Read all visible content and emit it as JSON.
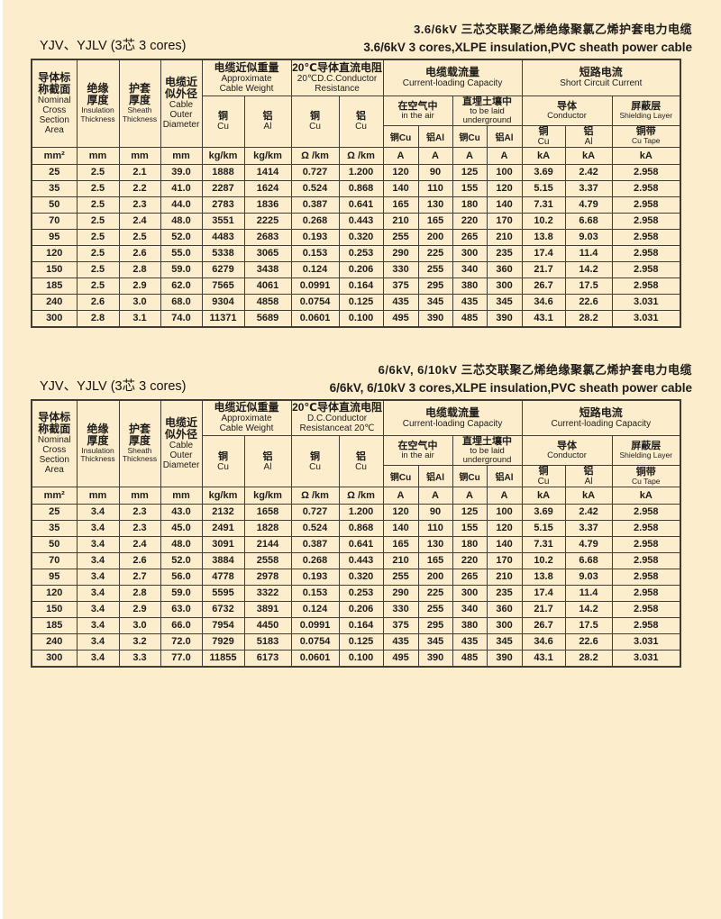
{
  "page": {
    "bg": "#fceecd",
    "border_color": "#403c36"
  },
  "tables": [
    {
      "title_zh": "3.6/6kV 三芯交联聚乙烯绝缘聚氯乙烯护套电力电缆",
      "title_en": "3.6/6kV 3 cores,XLPE insulation,PVC sheath power cable",
      "model": "YJV、YJLV (3芯 3 cores)",
      "header": {
        "nominal_zh": "导体标\n称截面",
        "nominal_en": "Nominal\nCross\nSection\nArea",
        "insulation_zh": "绝缘\n厚度",
        "insulation_en": "Insulation\nThickness",
        "sheath_zh": "护套\n厚度",
        "sheath_en": "Sheath\nThickness",
        "diameter_zh": "电缆近\n似外径",
        "diameter_en": "Cable\nOuter\nDiameter",
        "weight_zh": "电缆近似重量",
        "weight_en": "Approximate\nCable Weight",
        "res_zh": "20℃导体直流电阻",
        "res_en": "20℃D.C.Conductor\nResistance",
        "cap_zh": "电缆载流量",
        "cap_en": "Current-loading Capacity",
        "air_zh": "在空气中",
        "air_en": "in the air",
        "und_zh": "直埋土壤中",
        "und_en": "to be laid\nunderground",
        "sc_zh": "短路电流",
        "sc_en": "Short Circuit Current",
        "cond_zh": "导体",
        "cond_en": "Conductor",
        "shield_zh": "屏蔽层",
        "shield_en": "Shielding Layer",
        "cu_zh": "铜",
        "cu_en": "Cu",
        "al_zh": "铝",
        "al_en": "Al",
        "res_al_en": "Cu",
        "cap_air_cu": "铜Cu",
        "cap_air_al": "铝Al",
        "cap_und_cu": "铜Cu",
        "cap_und_al": "铝Al",
        "tape_zh": "铜带",
        "tape_en": "Cu Tape"
      },
      "units": [
        [
          "mm²",
          "mm",
          "mm",
          "mm",
          "kg/km",
          "kg/km",
          "Ω /km",
          "Ω /km",
          "A",
          "A",
          "A",
          "A",
          "kA",
          "kA",
          "kA"
        ]
      ],
      "rows": [
        [
          "25",
          "2.5",
          "2.1",
          "39.0",
          "1888",
          "1414",
          "0.727",
          "1.200",
          "120",
          "90",
          "125",
          "100",
          "3.69",
          "2.42",
          "2.958"
        ],
        [
          "35",
          "2.5",
          "2.2",
          "41.0",
          "2287",
          "1624",
          "0.524",
          "0.868",
          "140",
          "110",
          "155",
          "120",
          "5.15",
          "3.37",
          "2.958"
        ],
        [
          "50",
          "2.5",
          "2.3",
          "44.0",
          "2783",
          "1836",
          "0.387",
          "0.641",
          "165",
          "130",
          "180",
          "140",
          "7.31",
          "4.79",
          "2.958"
        ],
        [
          "70",
          "2.5",
          "2.4",
          "48.0",
          "3551",
          "2225",
          "0.268",
          "0.443",
          "210",
          "165",
          "220",
          "170",
          "10.2",
          "6.68",
          "2.958"
        ],
        [
          "95",
          "2.5",
          "2.5",
          "52.0",
          "4483",
          "2683",
          "0.193",
          "0.320",
          "255",
          "200",
          "265",
          "210",
          "13.8",
          "9.03",
          "2.958"
        ],
        [
          "120",
          "2.5",
          "2.6",
          "55.0",
          "5338",
          "3065",
          "0.153",
          "0.253",
          "290",
          "225",
          "300",
          "235",
          "17.4",
          "11.4",
          "2.958"
        ],
        [
          "150",
          "2.5",
          "2.8",
          "59.0",
          "6279",
          "3438",
          "0.124",
          "0.206",
          "330",
          "255",
          "340",
          "360",
          "21.7",
          "14.2",
          "2.958"
        ],
        [
          "185",
          "2.5",
          "2.9",
          "62.0",
          "7565",
          "4061",
          "0.0991",
          "0.164",
          "375",
          "295",
          "380",
          "300",
          "26.7",
          "17.5",
          "2.958"
        ],
        [
          "240",
          "2.6",
          "3.0",
          "68.0",
          "9304",
          "4858",
          "0.0754",
          "0.125",
          "435",
          "345",
          "435",
          "345",
          "34.6",
          "22.6",
          "3.031"
        ],
        [
          "300",
          "2.8",
          "3.1",
          "74.0",
          "11371",
          "5689",
          "0.0601",
          "0.100",
          "495",
          "390",
          "485",
          "390",
          "43.1",
          "28.2",
          "3.031"
        ]
      ]
    },
    {
      "title_zh": "6/6kV, 6/10kV 三芯交联聚乙烯绝缘聚氯乙烯护套电力电缆",
      "title_en": "6/6kV, 6/10kV 3 cores,XLPE insulation,PVC sheath power cable",
      "model": "YJV、YJLV (3芯 3 cores)",
      "header": {
        "nominal_zh": "导体标\n称截面",
        "nominal_en": "Nominal\nCross\nSection\nArea",
        "insulation_zh": "绝缘\n厚度",
        "insulation_en": "Insulation\nThickness",
        "sheath_zh": "护套\n厚度",
        "sheath_en": "Sheath\nThickness",
        "diameter_zh": "电缆近\n似外径",
        "diameter_en": "Cable\nOuter\nDiameter",
        "weight_zh": "电缆近似重量",
        "weight_en": "Approximate\nCable Weight",
        "res_zh": "20℃导体直流电阻",
        "res_en": "D.C.Conductor\nResistanceat 20℃",
        "cap_zh": "电缆载流量",
        "cap_en": "Current-loading Capacity",
        "air_zh": "在空气中",
        "air_en": "in the air",
        "und_zh": "直埋土壤中",
        "und_en": "to be laid\nunderground",
        "sc_zh": "短路电流",
        "sc_en": "Current-loading Capacity",
        "cond_zh": "导体",
        "cond_en": "Conductor",
        "shield_zh": "屏蔽层",
        "shield_en": "Shielding Layer",
        "cu_zh": "铜",
        "cu_en": "Cu",
        "al_zh": "铝",
        "al_en": "Al",
        "res_al_en": "Cu",
        "cap_air_cu": "铜Cu",
        "cap_air_al": "铝Al",
        "cap_und_cu": "铜Cu",
        "cap_und_al": "铝Al",
        "tape_zh": "铜带",
        "tape_en": "Cu Tape"
      },
      "units": [
        [
          "mm²",
          "mm",
          "mm",
          "mm",
          "kg/km",
          "kg/km",
          "Ω /km",
          "Ω /km",
          "A",
          "A",
          "A",
          "A",
          "kA",
          "kA",
          "kA"
        ]
      ],
      "rows": [
        [
          "25",
          "3.4",
          "2.3",
          "43.0",
          "2132",
          "1658",
          "0.727",
          "1.200",
          "120",
          "90",
          "125",
          "100",
          "3.69",
          "2.42",
          "2.958"
        ],
        [
          "35",
          "3.4",
          "2.3",
          "45.0",
          "2491",
          "1828",
          "0.524",
          "0.868",
          "140",
          "110",
          "155",
          "120",
          "5.15",
          "3.37",
          "2.958"
        ],
        [
          "50",
          "3.4",
          "2.4",
          "48.0",
          "3091",
          "2144",
          "0.387",
          "0.641",
          "165",
          "130",
          "180",
          "140",
          "7.31",
          "4.79",
          "2.958"
        ],
        [
          "70",
          "3.4",
          "2.6",
          "52.0",
          "3884",
          "2558",
          "0.268",
          "0.443",
          "210",
          "165",
          "220",
          "170",
          "10.2",
          "6.68",
          "2.958"
        ],
        [
          "95",
          "3.4",
          "2.7",
          "56.0",
          "4778",
          "2978",
          "0.193",
          "0.320",
          "255",
          "200",
          "265",
          "210",
          "13.8",
          "9.03",
          "2.958"
        ],
        [
          "120",
          "3.4",
          "2.8",
          "59.0",
          "5595",
          "3322",
          "0.153",
          "0.253",
          "290",
          "225",
          "300",
          "235",
          "17.4",
          "11.4",
          "2.958"
        ],
        [
          "150",
          "3.4",
          "2.9",
          "63.0",
          "6732",
          "3891",
          "0.124",
          "0.206",
          "330",
          "255",
          "340",
          "360",
          "21.7",
          "14.2",
          "2.958"
        ],
        [
          "185",
          "3.4",
          "3.0",
          "66.0",
          "7954",
          "4450",
          "0.0991",
          "0.164",
          "375",
          "295",
          "380",
          "300",
          "26.7",
          "17.5",
          "2.958"
        ],
        [
          "240",
          "3.4",
          "3.2",
          "72.0",
          "7929",
          "5183",
          "0.0754",
          "0.125",
          "435",
          "345",
          "435",
          "345",
          "34.6",
          "22.6",
          "3.031"
        ],
        [
          "300",
          "3.4",
          "3.3",
          "77.0",
          "11855",
          "6173",
          "0.0601",
          "0.100",
          "495",
          "390",
          "485",
          "390",
          "43.1",
          "28.2",
          "3.031"
        ]
      ]
    }
  ]
}
